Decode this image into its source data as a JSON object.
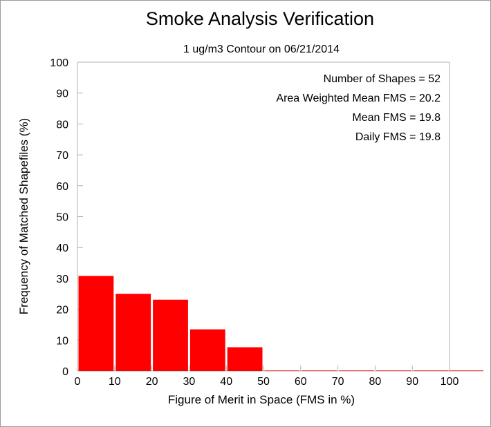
{
  "chart_data": {
    "type": "bar",
    "title": "Smoke Analysis Verification",
    "subtitle": "1 ug/m3 Contour on 06/21/2014",
    "xlabel": "Figure of Merit in Space (FMS in %)",
    "ylabel": "Frequency of Matched Shapefiles (%)",
    "xlim": [
      0,
      100
    ],
    "ylim": [
      0,
      100
    ],
    "x_ticks": [
      0,
      10,
      20,
      30,
      40,
      50,
      60,
      70,
      80,
      90,
      100
    ],
    "y_ticks": [
      0,
      10,
      20,
      30,
      40,
      50,
      60,
      70,
      80,
      90,
      100
    ],
    "bin_width": 10,
    "bins": [
      {
        "x0": 0,
        "x1": 10,
        "value": 30.8
      },
      {
        "x0": 10,
        "x1": 20,
        "value": 25.0
      },
      {
        "x0": 20,
        "x1": 30,
        "value": 23.1
      },
      {
        "x0": 30,
        "x1": 40,
        "value": 13.5
      },
      {
        "x0": 40,
        "x1": 50,
        "value": 7.7
      },
      {
        "x0": 50,
        "x1": 60,
        "value": 0
      },
      {
        "x0": 60,
        "x1": 70,
        "value": 0
      },
      {
        "x0": 70,
        "x1": 80,
        "value": 0
      },
      {
        "x0": 80,
        "x1": 90,
        "value": 0
      },
      {
        "x0": 90,
        "x1": 100,
        "value": 0
      }
    ],
    "bar_color": "#ff0000",
    "grid": false,
    "legend": "none",
    "annotations": [
      "Number of Shapes = 52",
      "Area Weighted Mean FMS = 20.2",
      "Mean FMS = 19.8",
      "Daily FMS = 19.8"
    ]
  }
}
